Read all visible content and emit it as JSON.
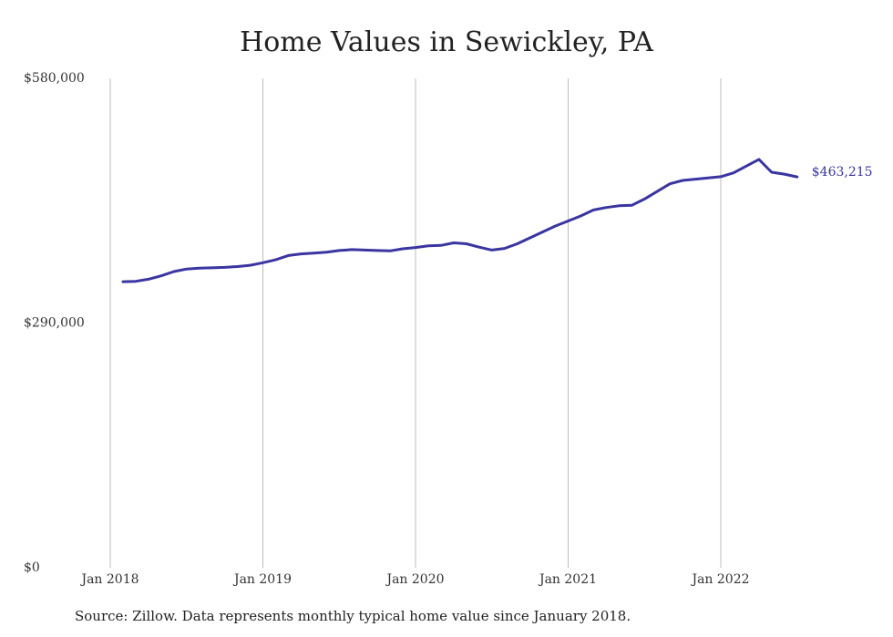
{
  "chart_data": {
    "type": "line",
    "title": "Home Values in Sewickley, PA",
    "xlabel": "",
    "ylabel": "",
    "ylim": [
      0,
      580000
    ],
    "y_ticks": [
      {
        "value": 0,
        "label": "$0"
      },
      {
        "value": 290000,
        "label": "$290,000"
      },
      {
        "value": 580000,
        "label": "$580,000"
      }
    ],
    "x_ticks": [
      {
        "value": "2018-01",
        "label": "Jan 2018"
      },
      {
        "value": "2019-01",
        "label": "Jan 2019"
      },
      {
        "value": "2020-01",
        "label": "Jan 2020"
      },
      {
        "value": "2021-01",
        "label": "Jan 2021"
      },
      {
        "value": "2022-01",
        "label": "Jan 2022"
      }
    ],
    "grid": "vertical",
    "series": [
      {
        "color": "#3a35a0",
        "end_label": "$463,215",
        "x": [
          "2018-02",
          "2018-03",
          "2018-04",
          "2018-05",
          "2018-06",
          "2018-07",
          "2018-08",
          "2018-09",
          "2018-10",
          "2018-11",
          "2018-12",
          "2019-01",
          "2019-02",
          "2019-03",
          "2019-04",
          "2019-05",
          "2019-06",
          "2019-07",
          "2019-08",
          "2019-09",
          "2019-10",
          "2019-11",
          "2019-12",
          "2020-01",
          "2020-02",
          "2020-03",
          "2020-04",
          "2020-05",
          "2020-06",
          "2020-07",
          "2020-08",
          "2020-09",
          "2020-10",
          "2020-11",
          "2020-12",
          "2021-01",
          "2021-02",
          "2021-03",
          "2021-04",
          "2021-05",
          "2021-06",
          "2021-07",
          "2021-08",
          "2021-09",
          "2021-10",
          "2021-11",
          "2021-12",
          "2022-01",
          "2022-02",
          "2022-03",
          "2022-04",
          "2022-05",
          "2022-06",
          "2022-07"
        ],
        "values": [
          339000,
          339500,
          342000,
          346000,
          351000,
          354000,
          355000,
          355500,
          356000,
          357000,
          358500,
          361500,
          365000,
          370000,
          372000,
          373000,
          374000,
          376000,
          377000,
          376500,
          376000,
          375500,
          378000,
          379500,
          381500,
          382000,
          385000,
          384000,
          380000,
          376500,
          378500,
          384000,
          391000,
          398000,
          405000,
          411000,
          417000,
          424000,
          427000,
          429000,
          429500,
          437000,
          446000,
          455000,
          459000,
          460500,
          462000,
          463500,
          468000,
          476000,
          484000,
          468800,
          466500,
          463215
        ]
      }
    ]
  },
  "footer": {
    "source_note": "Source: Zillow. Data represents monthly typical home value since January 2018."
  }
}
